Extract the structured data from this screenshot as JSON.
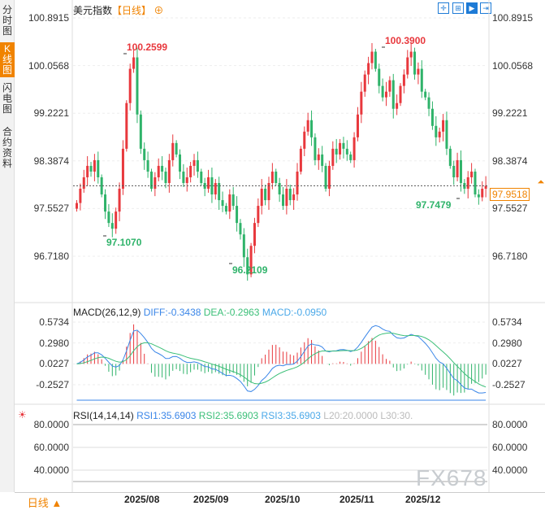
{
  "sidebar": {
    "tabs": [
      {
        "label": "分时图",
        "active": false
      },
      {
        "label": "K线图",
        "active": true
      },
      {
        "label": "闪电图",
        "active": false
      },
      {
        "label": "合约资料",
        "active": false
      }
    ]
  },
  "header": {
    "title": "美元指数",
    "period": "【日线】",
    "add_icon": "circle-plus-icon",
    "tools": [
      "crosshair-icon",
      "fit-icon",
      "play-icon",
      "scroll-end-icon"
    ]
  },
  "colors": {
    "up": "#e8383d",
    "down": "#2fb36a",
    "accent": "#f08300",
    "diff": "#3a86e8",
    "dea": "#3bbf78",
    "macd": "#4aa8e8"
  },
  "price_axis": [
    "100.8915",
    "100.0568",
    "99.2221",
    "98.3874",
    "97.5527",
    "96.7180"
  ],
  "current_price": "97.9518",
  "annotations": {
    "high1": "100.2599",
    "high2": "100.3900",
    "low1": "97.1070",
    "low2": "96.2109",
    "low3": "97.7479"
  },
  "macd": {
    "label": "MACD(26,12,9)",
    "diff": "DIFF:-0.3438",
    "dea": "DEA:-0.2963",
    "macd": "MACD:-0.0950",
    "axis": [
      "0.5734",
      "0.2980",
      "0.0227",
      "-0.2527"
    ]
  },
  "rsi": {
    "label": "RSI(14,14,14)",
    "rsi1": "RSI1:35.6903",
    "rsi2": "RSI2:35.6903",
    "rsi3": "RSI3:35.6903",
    "l20": "L20:20.0000",
    "l30": "L30:30.",
    "axis": [
      "80.0000",
      "60.0000",
      "40.0000"
    ]
  },
  "footer": {
    "period": "日线 ▲",
    "dates": [
      "2025/08",
      "2025/09",
      "2025/10",
      "2025/11",
      "2025/12"
    ]
  },
  "watermark": "FX678",
  "chart_data": {
    "type": "candlestick",
    "ylim": [
      96.718,
      100.8915
    ],
    "closes": [
      97.65,
      97.9,
      98.1,
      98.3,
      98.2,
      98.4,
      98.1,
      97.8,
      97.5,
      97.3,
      97.2,
      97.5,
      97.9,
      98.6,
      99.4,
      100.0,
      100.2,
      99.2,
      98.6,
      98.4,
      98.2,
      97.9,
      98.1,
      98.3,
      98.2,
      98.0,
      98.4,
      98.7,
      98.5,
      98.2,
      98.0,
      98.1,
      98.3,
      98.4,
      98.2,
      98.0,
      97.9,
      98.1,
      97.8,
      98.0,
      97.7,
      97.6,
      97.5,
      97.8,
      97.6,
      97.3,
      97.1,
      96.7,
      96.4,
      96.9,
      97.3,
      97.6,
      97.9,
      97.7,
      98.0,
      98.2,
      98.0,
      97.8,
      97.6,
      97.9,
      97.7,
      97.8,
      98.2,
      98.6,
      98.9,
      99.1,
      98.8,
      98.4,
      98.5,
      98.3,
      97.9,
      98.3,
      98.6,
      98.5,
      98.7,
      98.6,
      98.5,
      98.4,
      98.8,
      99.2,
      99.6,
      99.9,
      100.1,
      100.3,
      100.0,
      99.7,
      99.5,
      99.6,
      99.8,
      99.3,
      99.4,
      99.7,
      99.9,
      100.2,
      100.3,
      99.9,
      100.0,
      99.6,
      99.5,
      99.3,
      99.0,
      98.8,
      98.9,
      99.1,
      98.6,
      98.3,
      98.1,
      98.4,
      98.0,
      97.9,
      98.1,
      98.2,
      97.8,
      97.75,
      97.9,
      97.95
    ]
  }
}
